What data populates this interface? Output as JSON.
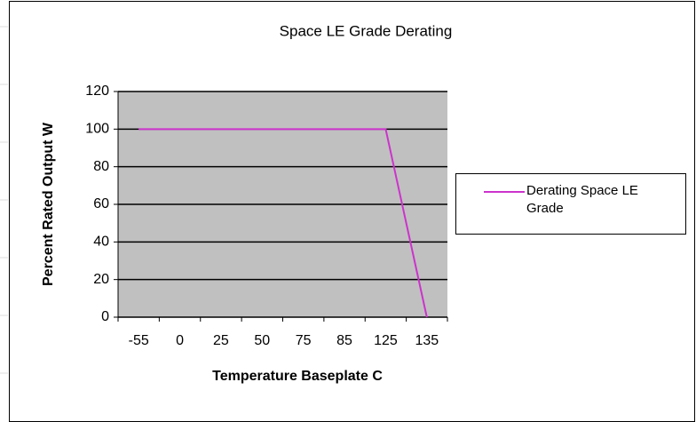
{
  "chart_data": {
    "type": "line",
    "title": "Space LE Grade Derating",
    "x_label": "Temperature Baseplate C",
    "y_label": "Percent Rated Output W",
    "categories": [
      "-55",
      "0",
      "25",
      "50",
      "75",
      "85",
      "125",
      "135"
    ],
    "series": [
      {
        "name": "Derating Space LE Grade",
        "color": "#cc33cc",
        "values": [
          100,
          100,
          100,
          100,
          100,
          100,
          100,
          0
        ]
      }
    ],
    "ylim": [
      0,
      120
    ],
    "yticks": [
      0,
      20,
      40,
      60,
      80,
      100,
      120
    ],
    "grid": true,
    "legend": "right"
  }
}
